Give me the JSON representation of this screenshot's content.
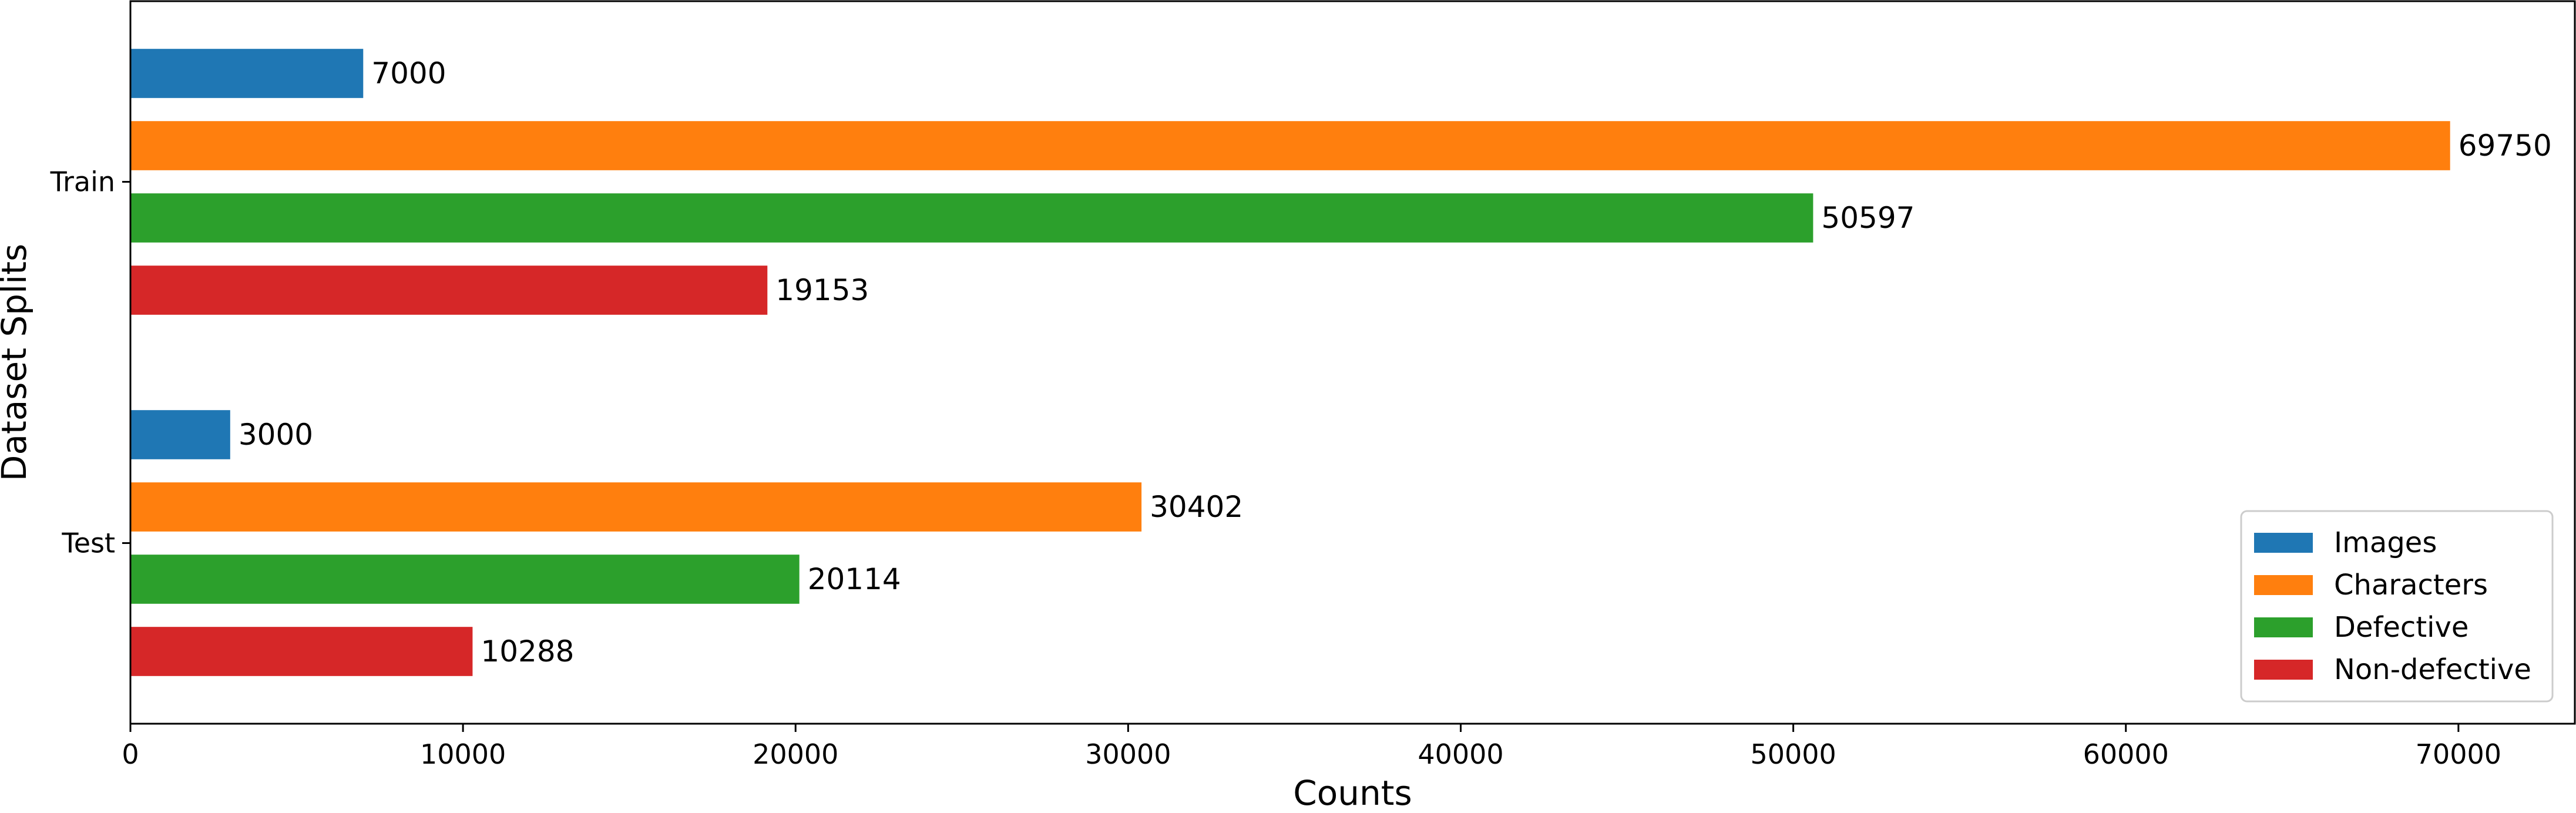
{
  "chart_data": {
    "type": "bar",
    "orientation": "horizontal",
    "categories": [
      "Train",
      "Test"
    ],
    "series": [
      {
        "name": "Images",
        "color": "#1f77b4",
        "values": [
          7000,
          3000
        ]
      },
      {
        "name": "Characters",
        "color": "#ff7f0e",
        "values": [
          69750,
          30402
        ]
      },
      {
        "name": "Defective",
        "color": "#2ca02c",
        "values": [
          50597,
          20114
        ]
      },
      {
        "name": "Non-defective",
        "color": "#d62728",
        "values": [
          19153,
          10288
        ]
      }
    ],
    "xlabel": "Counts",
    "ylabel": "Dataset Splits",
    "xlim": [
      0,
      73500
    ],
    "xticks": [
      0,
      10000,
      20000,
      30000,
      40000,
      50000,
      60000,
      70000
    ],
    "grid": false,
    "legend": "bottom-right",
    "data_labels": true
  }
}
